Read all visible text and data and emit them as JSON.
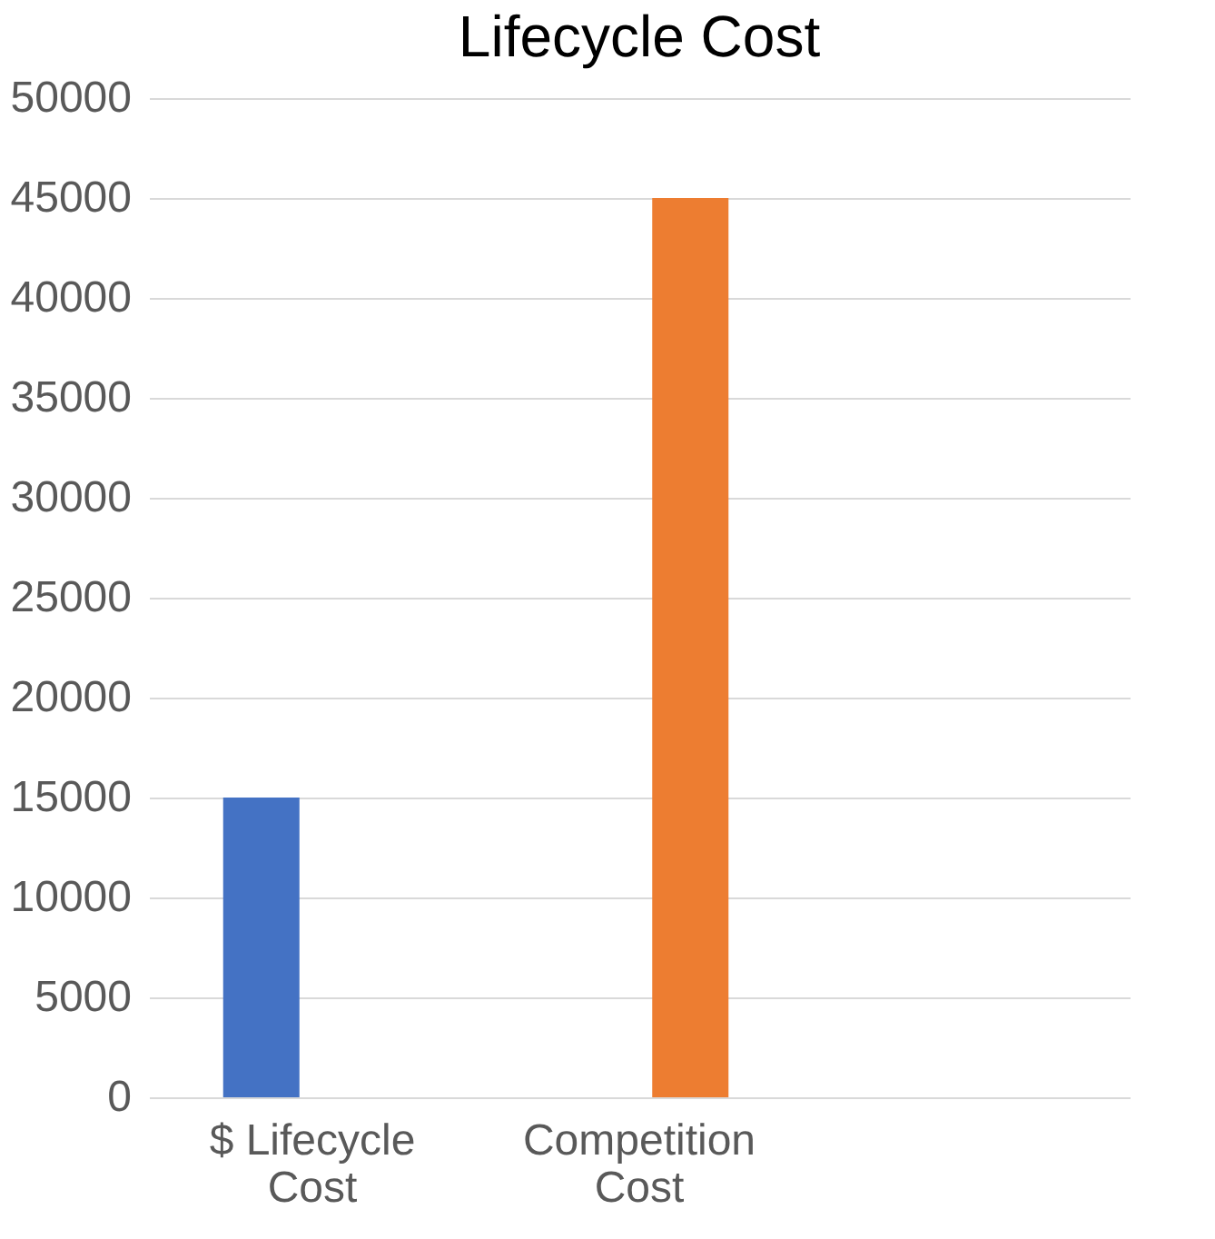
{
  "chart_data": {
    "type": "bar",
    "title": "Lifecycle Cost",
    "categories": [
      "$ Lifecycle Cost",
      "Competition Cost",
      null
    ],
    "series": [
      {
        "color": "#4472c4",
        "values": [
          15000,
          null,
          null
        ]
      },
      {
        "color": "#ed7d31",
        "values": [
          null,
          45000,
          null
        ]
      }
    ],
    "ylim": [
      0,
      50000
    ],
    "yticks": [
      0,
      5000,
      10000,
      15000,
      20000,
      25000,
      30000,
      35000,
      40000,
      45000,
      50000
    ],
    "grid": "y",
    "legend": false
  }
}
